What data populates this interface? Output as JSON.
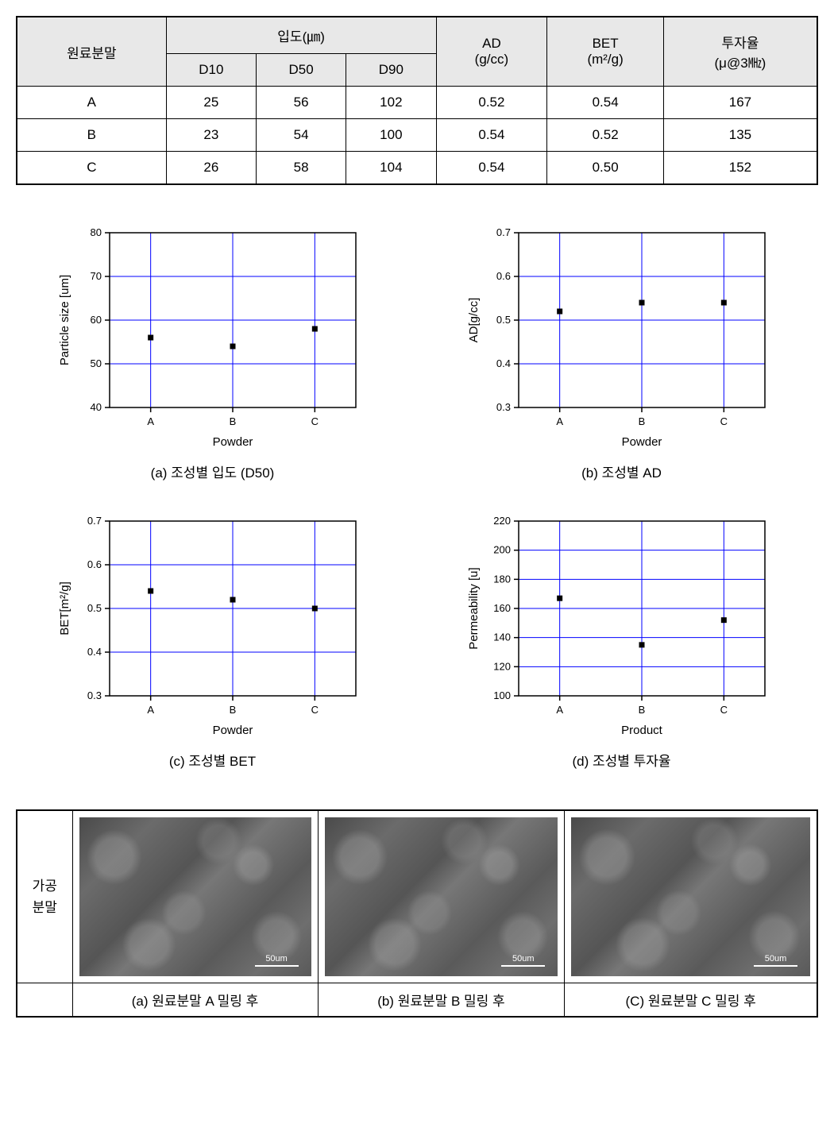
{
  "table": {
    "headers": {
      "material": "원료분말",
      "particle_group": "입도(㎛)",
      "d10": "D10",
      "d50": "D50",
      "d90": "D90",
      "ad": "AD\n(g/cc)",
      "ad_line1": "AD",
      "ad_line2": "(g/cc)",
      "bet_line1": "BET",
      "bet_line2": "(m²/g)",
      "perm_line1": "투자율",
      "perm_line2": "(μ@3㎒)"
    },
    "rows": [
      {
        "name": "A",
        "d10": "25",
        "d50": "56",
        "d90": "102",
        "ad": "0.52",
        "bet": "0.54",
        "perm": "167"
      },
      {
        "name": "B",
        "d10": "23",
        "d50": "54",
        "d90": "100",
        "ad": "0.54",
        "bet": "0.52",
        "perm": "135"
      },
      {
        "name": "C",
        "d10": "26",
        "d50": "58",
        "d90": "104",
        "ad": "0.54",
        "bet": "0.50",
        "perm": "152"
      }
    ]
  },
  "charts": [
    {
      "id": "chart-d50",
      "caption": "(a) 조성별 입도 (D50)",
      "type": "scatter",
      "xlabel": "Powder",
      "ylabel": "Particle size [um]",
      "categories": [
        "A",
        "B",
        "C"
      ],
      "values": [
        56,
        54,
        58
      ],
      "ylim": [
        40,
        80
      ],
      "ytick_step": 10,
      "yticks": [
        40,
        50,
        60,
        70,
        80
      ],
      "grid_color": "#0000ff",
      "axis_color": "#000000",
      "marker_color": "#000000",
      "marker_size": 7,
      "background_color": "#ffffff",
      "tick_fontsize": 13,
      "label_fontsize": 15
    },
    {
      "id": "chart-ad",
      "caption": "(b) 조성별 AD",
      "type": "scatter",
      "xlabel": "Powder",
      "ylabel": "AD[g/cc]",
      "categories": [
        "A",
        "B",
        "C"
      ],
      "values": [
        0.52,
        0.54,
        0.54
      ],
      "ylim": [
        0.3,
        0.7
      ],
      "ytick_step": 0.1,
      "yticks": [
        0.3,
        0.4,
        0.5,
        0.6,
        0.7
      ],
      "grid_color": "#0000ff",
      "axis_color": "#000000",
      "marker_color": "#000000",
      "marker_size": 7,
      "background_color": "#ffffff",
      "tick_fontsize": 13,
      "label_fontsize": 15
    },
    {
      "id": "chart-bet",
      "caption": "(c) 조성별 BET",
      "type": "scatter",
      "xlabel": "Powder",
      "ylabel": "BET[m²/g]",
      "categories": [
        "A",
        "B",
        "C"
      ],
      "values": [
        0.54,
        0.52,
        0.5
      ],
      "ylim": [
        0.3,
        0.7
      ],
      "ytick_step": 0.1,
      "yticks": [
        0.3,
        0.4,
        0.5,
        0.6,
        0.7
      ],
      "grid_color": "#0000ff",
      "axis_color": "#000000",
      "marker_color": "#000000",
      "marker_size": 7,
      "background_color": "#ffffff",
      "tick_fontsize": 13,
      "label_fontsize": 15
    },
    {
      "id": "chart-perm",
      "caption": "(d) 조성별 투자율",
      "type": "scatter",
      "xlabel": "Product",
      "ylabel": "Permeability [u]",
      "categories": [
        "A",
        "B",
        "C"
      ],
      "values": [
        167,
        135,
        152
      ],
      "ylim": [
        100,
        220
      ],
      "ytick_step": 20,
      "yticks": [
        100,
        120,
        140,
        160,
        180,
        200,
        220
      ],
      "grid_color": "#0000ff",
      "axis_color": "#000000",
      "marker_color": "#000000",
      "marker_size": 7,
      "background_color": "#ffffff",
      "tick_fontsize": 13,
      "label_fontsize": 15
    }
  ],
  "sem": {
    "row_label_line1": "가공",
    "row_label_line2": "분말",
    "scale_label": "50um",
    "captions": [
      "(a) 원료분말 A 밀링 후",
      "(b) 원료분말 B 밀링 후",
      "(C) 원료분말 C 밀링 후"
    ]
  }
}
